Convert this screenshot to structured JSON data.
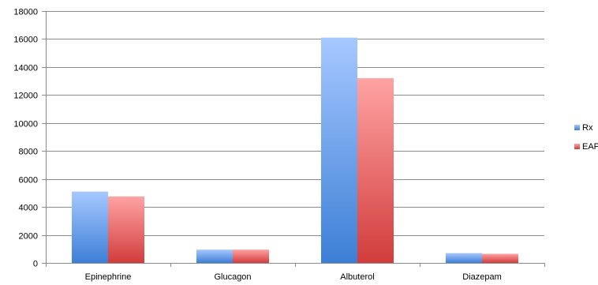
{
  "chart_data": {
    "type": "bar",
    "title": "",
    "xlabel": "",
    "ylabel": "",
    "categories": [
      "Epinephrine",
      "Glucagon",
      "Albuterol",
      "Diazepam"
    ],
    "series": [
      {
        "name": "Rx",
        "values": [
          5100,
          950,
          16100,
          700
        ]
      },
      {
        "name": "EAP",
        "values": [
          4750,
          950,
          13200,
          650
        ]
      }
    ],
    "ylim": [
      0,
      18000
    ],
    "yticks": [
      0,
      2000,
      4000,
      6000,
      8000,
      10000,
      12000,
      14000,
      16000,
      18000
    ],
    "grid": true,
    "legend_position": "right",
    "colors": {
      "Rx": {
        "top": "#a6c8ff",
        "bottom": "#3d7fd6"
      },
      "EAP": {
        "top": "#ffa3a3",
        "bottom": "#d23c3c"
      }
    }
  }
}
